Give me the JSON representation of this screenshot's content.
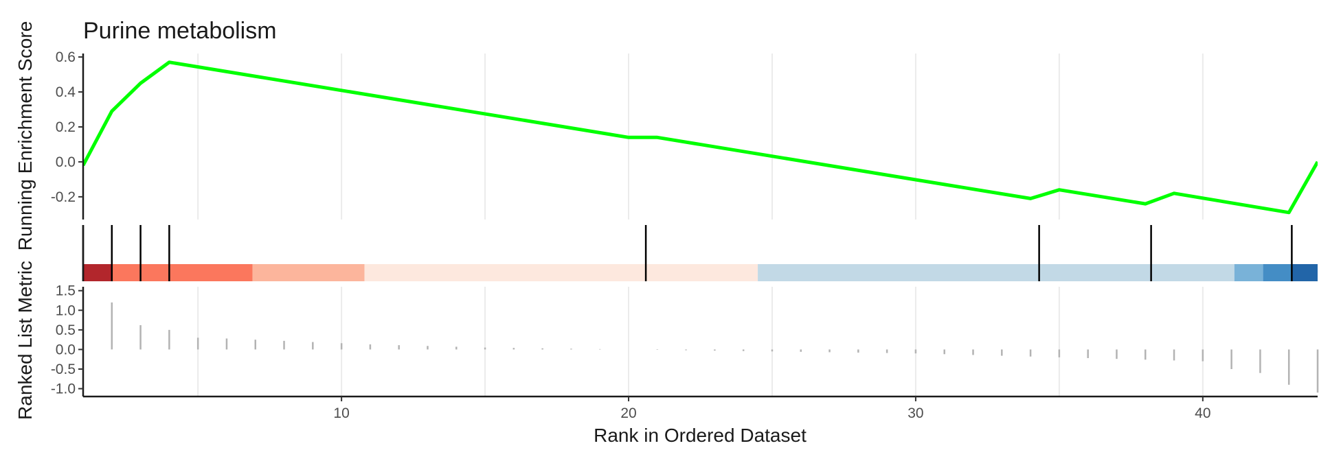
{
  "chart_data": {
    "type": "line",
    "title": "Purine metabolism",
    "xlabel": "Rank in Ordered Dataset",
    "xlim": [
      1,
      44
    ],
    "x_ticks": [
      10,
      20,
      30,
      40
    ],
    "panels": {
      "enrichment": {
        "ylabel": "Running Enrichment Score",
        "ylim": [
          -0.33,
          0.62
        ],
        "y_ticks": [
          0.6,
          0.4,
          0.2,
          0.0,
          -0.2
        ],
        "y_tick_labels": [
          "0.6",
          "0.4",
          "0.2",
          "0.0",
          "-0.2"
        ],
        "line_color": "#00ff00",
        "series": [
          {
            "x": [
              1,
              2,
              3,
              4,
              20,
              21,
              34,
              35,
              38,
              39,
              43,
              44
            ],
            "y": [
              -0.02,
              0.29,
              0.45,
              0.57,
              0.14,
              0.14,
              -0.21,
              -0.16,
              -0.24,
              -0.18,
              -0.29,
              0.0
            ]
          }
        ]
      },
      "hits": {
        "positions": [
          1,
          2,
          3,
          4,
          20.6,
          34.3,
          38.2,
          43.1
        ],
        "color_bands": [
          {
            "from": 1,
            "to": 2,
            "color": "#b2262c"
          },
          {
            "from": 2,
            "to": 6.9,
            "color": "#fb775d"
          },
          {
            "from": 6.9,
            "to": 10.8,
            "color": "#fcb59c"
          },
          {
            "from": 10.8,
            "to": 24.5,
            "color": "#fde8de"
          },
          {
            "from": 24.5,
            "to": 41.1,
            "color": "#c2d9e6"
          },
          {
            "from": 41.1,
            "to": 42.1,
            "color": "#79b2d8"
          },
          {
            "from": 42.1,
            "to": 43.1,
            "color": "#448dc5"
          },
          {
            "from": 43.1,
            "to": 44,
            "color": "#2265a8"
          }
        ]
      },
      "ranked": {
        "ylabel": "Ranked List Metric",
        "ylim": [
          -1.2,
          1.6
        ],
        "y_ticks": [
          1.5,
          1.0,
          0.5,
          0.0,
          -0.5,
          -1.0
        ],
        "y_tick_labels": [
          "1.5",
          "1.0",
          "0.5",
          "0.0",
          "-0.5",
          "-1.0"
        ],
        "bar_color": "#b3b3b3",
        "x": [
          1,
          2,
          3,
          4,
          5,
          6,
          7,
          8,
          9,
          10,
          11,
          12,
          13,
          14,
          15,
          16,
          17,
          18,
          19,
          20,
          21,
          22,
          23,
          24,
          25,
          26,
          27,
          28,
          29,
          30,
          31,
          32,
          33,
          34,
          35,
          36,
          37,
          38,
          39,
          40,
          41,
          42,
          43,
          44
        ],
        "values": [
          0.0,
          1.2,
          0.62,
          0.5,
          0.3,
          0.28,
          0.25,
          0.22,
          0.19,
          0.16,
          0.13,
          0.11,
          0.09,
          0.07,
          0.05,
          0.04,
          0.03,
          0.02,
          0.01,
          0.0,
          -0.01,
          -0.02,
          -0.03,
          -0.04,
          -0.05,
          -0.06,
          -0.07,
          -0.08,
          -0.09,
          -0.1,
          -0.12,
          -0.14,
          -0.16,
          -0.18,
          -0.2,
          -0.22,
          -0.24,
          -0.26,
          -0.28,
          -0.3,
          -0.5,
          -0.6,
          -0.9,
          -1.1
        ]
      }
    }
  }
}
